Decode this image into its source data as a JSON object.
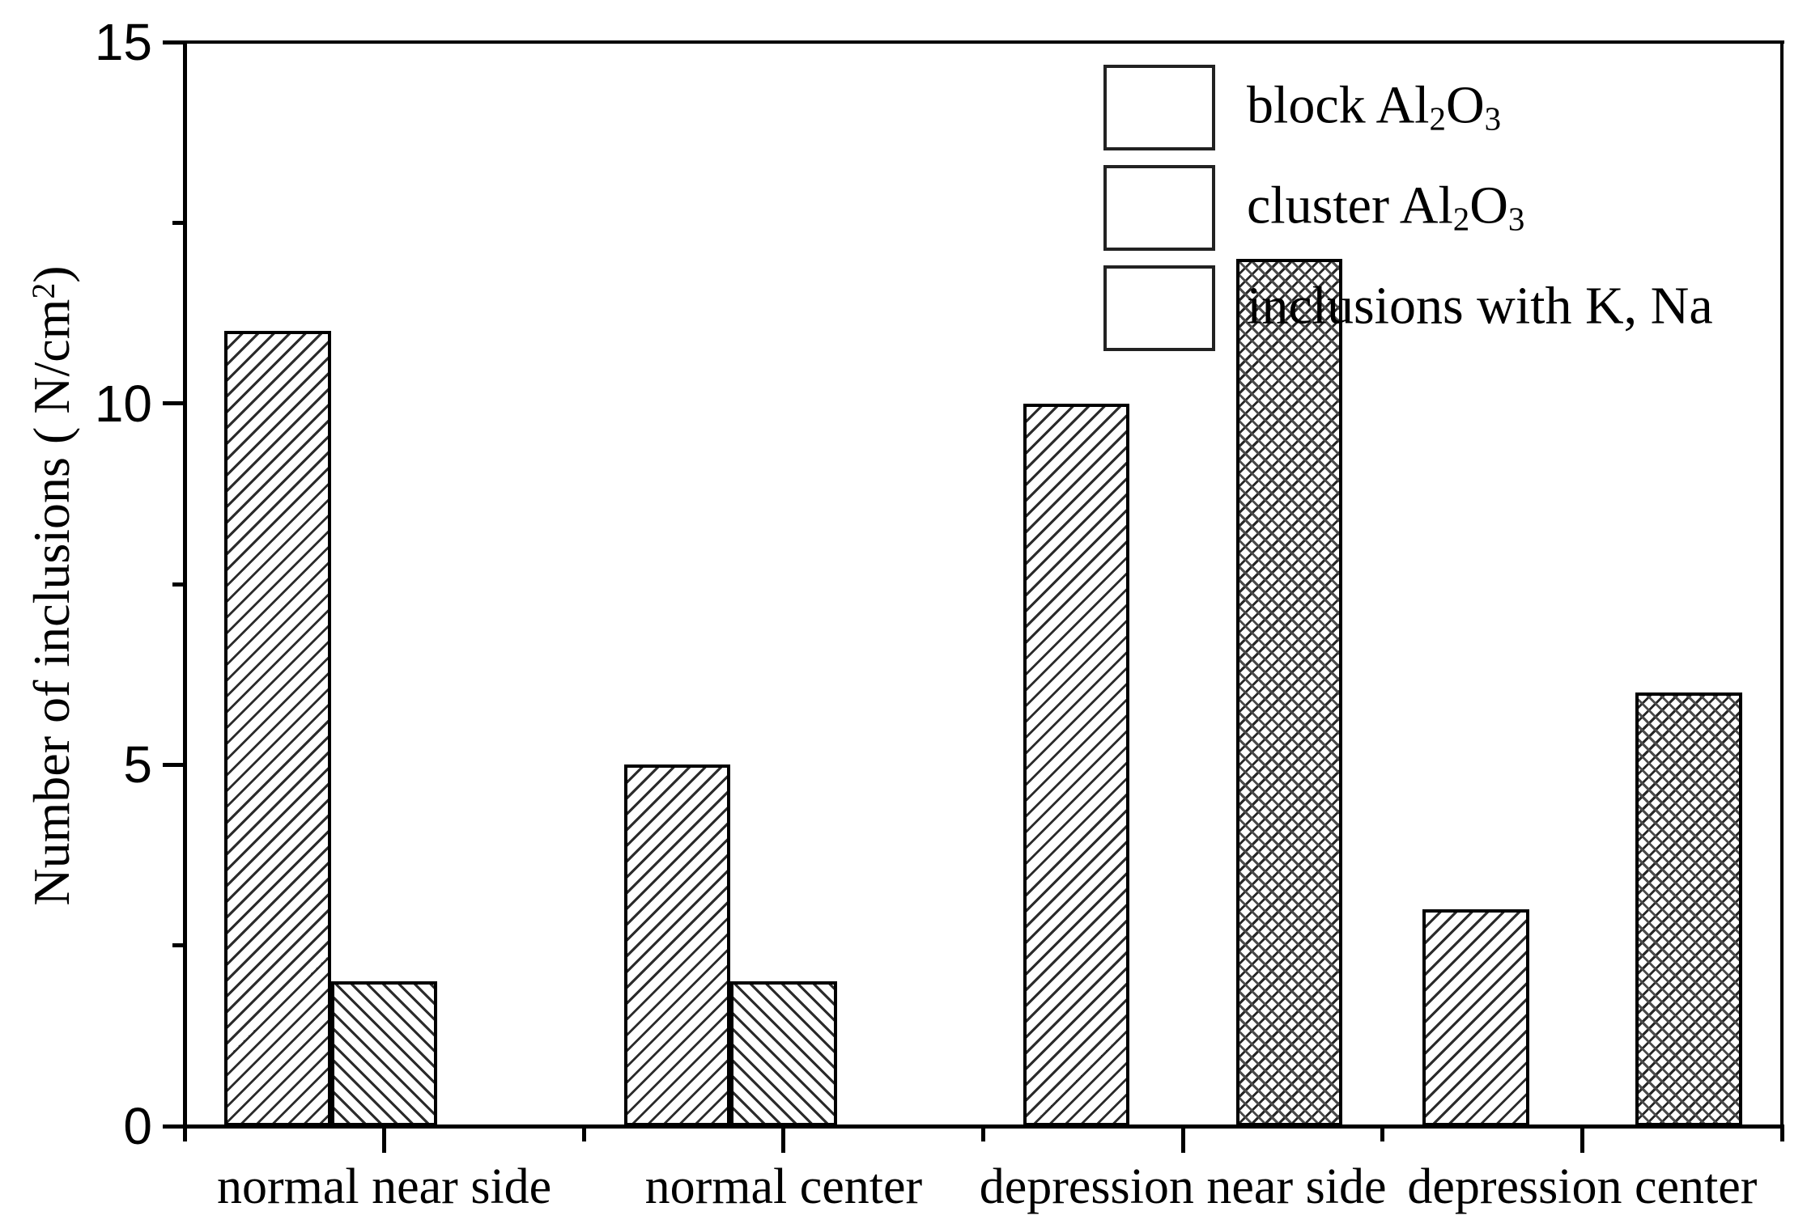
{
  "chart_data": {
    "type": "bar",
    "title": "",
    "xlabel": "",
    "ylabel": "Number of inclusions ( N/cm2 )",
    "ylabel_parts": [
      {
        "t": "Number of inclusions ( N/cm"
      },
      {
        "sup": "2"
      },
      {
        "t": ")"
      }
    ],
    "ylim": [
      0,
      15
    ],
    "y_major_ticks": [
      0,
      5,
      10,
      15
    ],
    "y_minor_ticks": [
      2.5,
      7.5,
      12.5
    ],
    "grid": false,
    "frame": true,
    "legend_position": "top-right",
    "categories": [
      "normal near side",
      "normal center",
      "depression near side",
      "depression center"
    ],
    "series": [
      {
        "name": "block Al2O3",
        "label_parts": [
          {
            "t": "block Al"
          },
          {
            "sub": "2"
          },
          {
            "t": "O"
          },
          {
            "sub": "3"
          }
        ],
        "pattern": "diag-up",
        "slot": 0,
        "values": [
          11,
          5,
          10,
          3
        ]
      },
      {
        "name": "cluster Al2O3",
        "label_parts": [
          {
            "t": "cluster Al"
          },
          {
            "sub": "2"
          },
          {
            "t": "O"
          },
          {
            "sub": "3"
          }
        ],
        "pattern": "diag-down",
        "slot": 1,
        "values": [
          2,
          2,
          0,
          0
        ]
      },
      {
        "name": "inclusions with K, Na",
        "label_parts": [
          {
            "t": "inclusions with K, Na"
          }
        ],
        "pattern": "cross",
        "slot": 2,
        "values": [
          0,
          0,
          12,
          6
        ]
      }
    ]
  },
  "colors": {
    "background": "#ffffff",
    "axis": "#000000",
    "text": "#000000",
    "hatch": "#2b2b2b"
  }
}
